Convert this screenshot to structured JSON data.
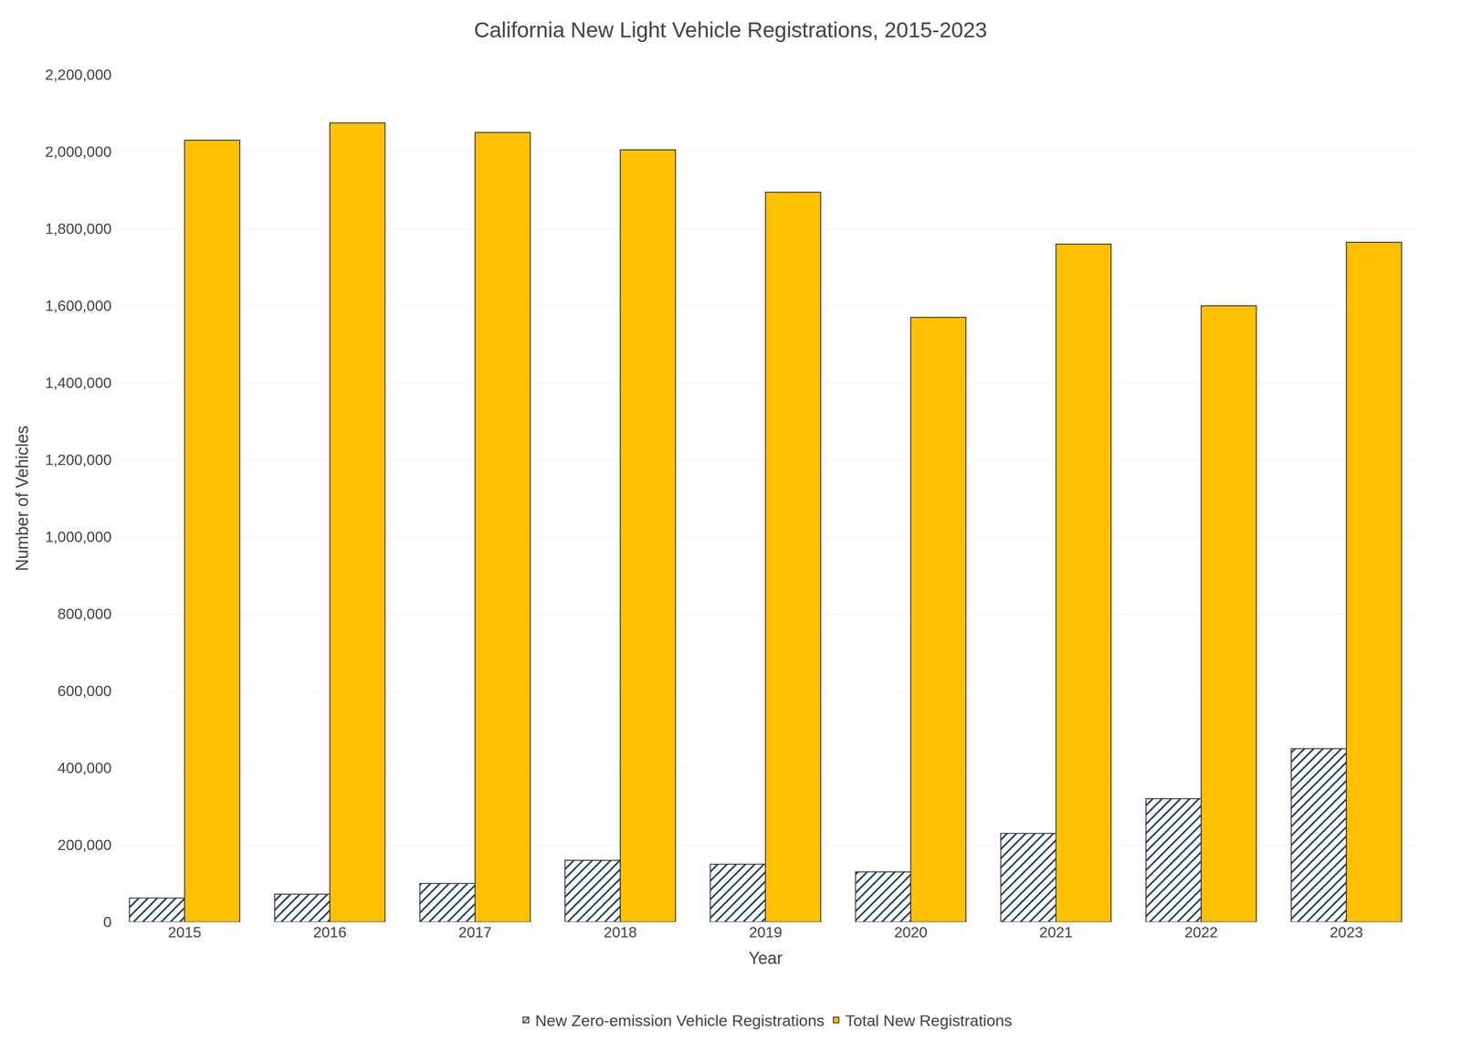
{
  "chart_data": {
    "type": "bar",
    "title": "California New Light Vehicle Registrations, 2015-2023",
    "x_label": "Year",
    "y_label": "Number of Vehicles",
    "categories": [
      "2015",
      "2016",
      "2017",
      "2018",
      "2019",
      "2020",
      "2021",
      "2022",
      "2023"
    ],
    "series": [
      {
        "name": "New Zero-emission Vehicle Registrations",
        "color": "#6BB8E8",
        "values": [
          62000,
          72000,
          100000,
          160000,
          150000,
          130000,
          230000,
          320000,
          450000
        ]
      },
      {
        "name": "Total New Registrations",
        "color": "#FFC000",
        "values": [
          2030000,
          2075000,
          2050000,
          2005000,
          1895000,
          1570000,
          1760000,
          1600000,
          1765000
        ]
      }
    ],
    "ylim": [
      0,
      2200000
    ],
    "yticks": [
      0,
      {
        "value": 200000,
        "label": "200,000"
      },
      {
        "value": 400000,
        "label": "400,000"
      },
      {
        "value": 600000,
        "label": "600,000"
      },
      {
        "value": 800000,
        "label": "800,000"
      },
      {
        "value": 1000000,
        "label": "1,000,000"
      },
      {
        "value": 1200000,
        "label": "1,200,000"
      },
      {
        "value": 1400000,
        "label": "1,400,000"
      },
      {
        "value": 1600000,
        "label": "1,600,000"
      },
      {
        "value": 1800000,
        "label": "1,800,000"
      },
      {
        "value": 2000000,
        "label": "2,000,000"
      },
      {
        "value": 2200000,
        "label": "2,200,000"
      }
    ],
    "grid": true,
    "legend": "bottom"
  }
}
